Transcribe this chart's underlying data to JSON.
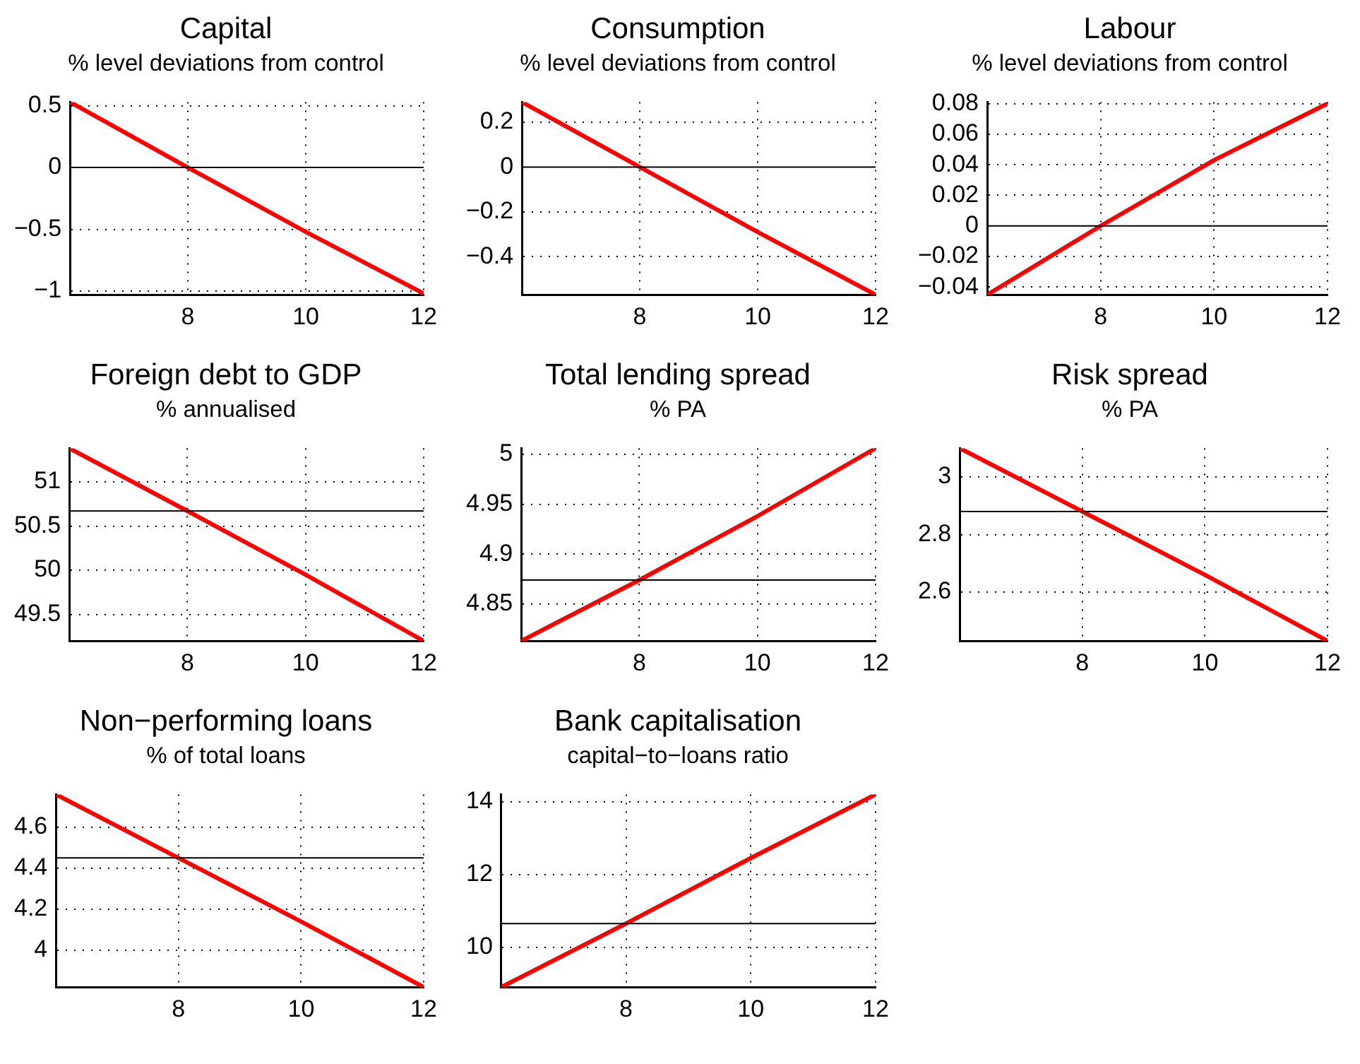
{
  "chart_data": [
    {
      "type": "line",
      "title": "Capital",
      "subtitle": "% level deviations from control",
      "x": [
        6,
        8,
        10,
        12
      ],
      "series": [
        {
          "color": "#ff0000",
          "values": [
            0.53,
            0,
            -0.52,
            -1.02
          ]
        }
      ],
      "xlim": [
        6,
        12
      ],
      "xticks": [
        8,
        10,
        12
      ],
      "ylim": [
        -1.03,
        0.53
      ],
      "yticks": [
        -1,
        -0.5,
        0,
        0.5
      ],
      "ref_lines": [
        {
          "axis": "y",
          "value": 0,
          "color": "#000000"
        }
      ],
      "grid": true,
      "legend": false,
      "marker": "none",
      "line_style": "solid"
    },
    {
      "type": "line",
      "title": "Consumption",
      "subtitle": "% level deviations from control",
      "x": [
        6,
        8,
        10,
        12
      ],
      "series": [
        {
          "color": "#ff0000",
          "values": [
            0.29,
            0,
            -0.29,
            -0.57
          ]
        }
      ],
      "xlim": [
        6,
        12
      ],
      "xticks": [
        8,
        10,
        12
      ],
      "ylim": [
        -0.57,
        0.29
      ],
      "yticks": [
        -0.4,
        -0.2,
        0,
        0.2
      ],
      "ref_lines": [
        {
          "axis": "y",
          "value": 0,
          "color": "#000000"
        }
      ],
      "grid": true,
      "legend": false,
      "marker": "none",
      "line_style": "solid"
    },
    {
      "type": "line",
      "title": "Labour",
      "subtitle": "% level deviations from control",
      "x": [
        6,
        8,
        10,
        12
      ],
      "series": [
        {
          "color": "#ff0000",
          "values": [
            -0.045,
            0,
            0.043,
            0.08
          ]
        }
      ],
      "xlim": [
        6,
        12
      ],
      "xticks": [
        8,
        10,
        12
      ],
      "ylim": [
        -0.045,
        0.081
      ],
      "yticks": [
        -0.04,
        -0.02,
        0,
        0.02,
        0.04,
        0.06,
        0.08
      ],
      "ref_lines": [
        {
          "axis": "y",
          "value": 0,
          "color": "#000000"
        }
      ],
      "grid": true,
      "legend": false,
      "marker": "none",
      "line_style": "solid"
    },
    {
      "type": "line",
      "title": "Foreign debt to GDP",
      "subtitle": "% annualised",
      "x": [
        6,
        8,
        10,
        12
      ],
      "series": [
        {
          "color": "#ff0000",
          "values": [
            51.38,
            50.67,
            49.95,
            49.2
          ]
        }
      ],
      "xlim": [
        6,
        12
      ],
      "xticks": [
        8,
        10,
        12
      ],
      "ylim": [
        49.2,
        51.38
      ],
      "yticks": [
        49.5,
        50,
        50.5,
        51
      ],
      "ref_lines": [
        {
          "axis": "y",
          "value": 50.67,
          "color": "#000000"
        }
      ],
      "grid": true,
      "legend": false,
      "marker": "none",
      "line_style": "solid"
    },
    {
      "type": "line",
      "title": "Total lending spread",
      "subtitle": "% PA",
      "x": [
        6,
        8,
        10,
        12
      ],
      "series": [
        {
          "color": "#ff0000",
          "values": [
            4.813,
            4.874,
            4.938,
            5.006
          ]
        }
      ],
      "xlim": [
        6,
        12
      ],
      "xticks": [
        8,
        10,
        12
      ],
      "ylim": [
        4.813,
        5.006
      ],
      "yticks": [
        4.85,
        4.9,
        4.95,
        5
      ],
      "ref_lines": [
        {
          "axis": "y",
          "value": 4.874,
          "color": "#000000"
        }
      ],
      "grid": true,
      "legend": false,
      "marker": "none",
      "line_style": "solid"
    },
    {
      "type": "line",
      "title": "Risk spread",
      "subtitle": "% PA",
      "x": [
        6,
        8,
        10,
        12
      ],
      "series": [
        {
          "color": "#ff0000",
          "values": [
            3.1,
            2.88,
            2.66,
            2.43
          ]
        }
      ],
      "xlim": [
        6,
        12
      ],
      "xticks": [
        8,
        10,
        12
      ],
      "ylim": [
        2.43,
        3.1
      ],
      "yticks": [
        2.6,
        2.8,
        3
      ],
      "ref_lines": [
        {
          "axis": "y",
          "value": 2.88,
          "color": "#000000"
        }
      ],
      "grid": true,
      "legend": false,
      "marker": "none",
      "line_style": "solid"
    },
    {
      "type": "line",
      "title": "Non−performing loans",
      "subtitle": "% of total loans",
      "x": [
        6,
        8,
        10,
        12
      ],
      "series": [
        {
          "color": "#ff0000",
          "values": [
            4.76,
            4.45,
            4.14,
            3.82
          ]
        }
      ],
      "xlim": [
        6,
        12
      ],
      "xticks": [
        8,
        10,
        12
      ],
      "ylim": [
        3.82,
        4.76
      ],
      "yticks": [
        4,
        4.2,
        4.4,
        4.6
      ],
      "ref_lines": [
        {
          "axis": "y",
          "value": 4.45,
          "color": "#000000"
        }
      ],
      "grid": true,
      "legend": false,
      "marker": "none",
      "line_style": "solid"
    },
    {
      "type": "line",
      "title": "Bank capitalisation",
      "subtitle": "capital−to−loans ratio",
      "x": [
        6,
        8,
        10,
        12
      ],
      "series": [
        {
          "color": "#ff0000",
          "values": [
            8.9,
            10.65,
            12.45,
            14.2
          ]
        }
      ],
      "xlim": [
        6,
        12
      ],
      "xticks": [
        8,
        10,
        12
      ],
      "ylim": [
        8.9,
        14.2
      ],
      "yticks": [
        10,
        12,
        14
      ],
      "ref_lines": [
        {
          "axis": "y",
          "value": 10.65,
          "color": "#000000"
        }
      ],
      "grid": true,
      "legend": false,
      "marker": "none",
      "line_style": "solid"
    }
  ]
}
